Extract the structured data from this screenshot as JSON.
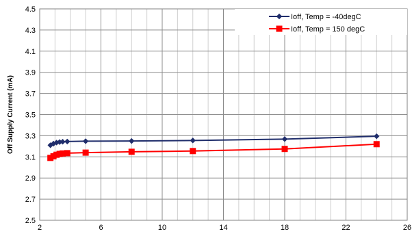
{
  "chart_data": {
    "type": "line",
    "title": "",
    "xlabel": "",
    "ylabel": "Off Supply Current  (mA)",
    "xlim": [
      2,
      26
    ],
    "ylim": [
      2.5,
      4.5
    ],
    "xticks": [
      2,
      6,
      10,
      14,
      18,
      22,
      26
    ],
    "yticks": [
      2.5,
      2.7,
      2.9,
      3.1,
      3.3,
      3.5,
      3.7,
      3.9,
      4.1,
      4.3,
      4.5
    ],
    "grid": true,
    "legend_position": "top-right",
    "series": [
      {
        "name": "Ioff, Temp = -40degC",
        "color": "#1f2d6b",
        "marker": "diamond",
        "x": [
          2.7,
          2.9,
          3.1,
          3.3,
          3.5,
          3.8,
          5,
          8,
          12,
          18,
          24
        ],
        "y": [
          3.21,
          3.225,
          3.235,
          3.24,
          3.243,
          3.245,
          3.248,
          3.25,
          3.255,
          3.268,
          3.295
        ]
      },
      {
        "name": "Ioff, Temp = 150 degC",
        "color": "#ff0000",
        "marker": "square",
        "x": [
          2.7,
          2.9,
          3.1,
          3.3,
          3.5,
          3.8,
          5,
          8,
          12,
          18,
          24
        ],
        "y": [
          3.09,
          3.105,
          3.12,
          3.128,
          3.132,
          3.135,
          3.14,
          3.148,
          3.155,
          3.175,
          3.22
        ]
      }
    ]
  }
}
